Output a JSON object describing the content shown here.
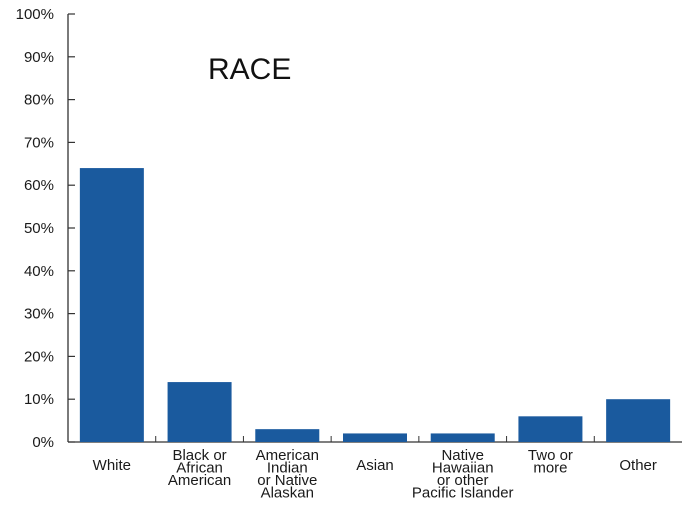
{
  "chart_data": {
    "type": "bar",
    "title": "RACE",
    "xlabel": "",
    "ylabel": "",
    "ylim": [
      0,
      100
    ],
    "yticks": [
      "0%",
      "10%",
      "20%",
      "30%",
      "40%",
      "50%",
      "60%",
      "70%",
      "80%",
      "90%",
      "100%"
    ],
    "categories": [
      [
        "White"
      ],
      [
        "Black or",
        "African",
        "American"
      ],
      [
        "American",
        "Indian",
        "or Native",
        "Alaskan"
      ],
      [
        "Asian"
      ],
      [
        "Native",
        "Hawaiian",
        "or other",
        "Pacific Islander"
      ],
      [
        "Two or",
        "more"
      ],
      [
        "Other"
      ]
    ],
    "values": [
      64,
      14,
      3,
      2,
      2,
      6,
      10
    ],
    "bar_color": "#1a5a9e",
    "grid": false,
    "legend": "none"
  }
}
